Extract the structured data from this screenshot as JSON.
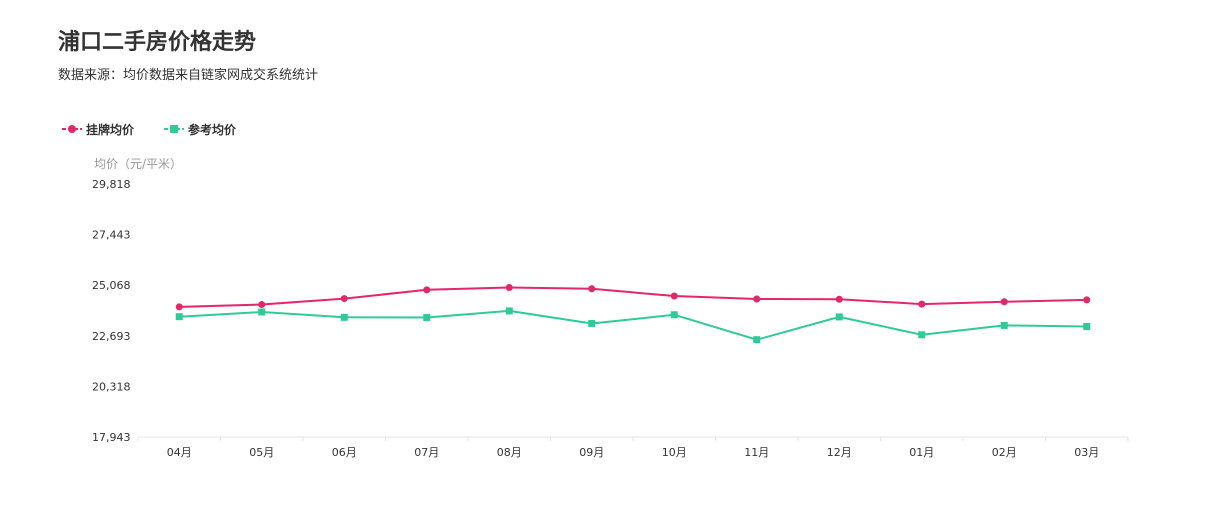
{
  "header": {
    "title": "浦口二手房价格走势",
    "subtitle": "数据来源：均价数据来自链家网成交系统统计"
  },
  "chart_data": {
    "type": "line",
    "title": "浦口二手房价格走势",
    "ylabel": "均价（元/平米）",
    "xlabel": "",
    "categories": [
      "04月",
      "05月",
      "06月",
      "07月",
      "08月",
      "09月",
      "10月",
      "11月",
      "12月",
      "01月",
      "02月",
      "03月"
    ],
    "yticks": [
      "17,943",
      "20,318",
      "22,693",
      "25,068",
      "27,443",
      "29,818"
    ],
    "ylim": [
      17943,
      29818
    ],
    "grid": false,
    "legend_position": "top-left",
    "series": [
      {
        "name": "挂牌均价",
        "color": "#e3276a",
        "marker": "circle",
        "values": [
          24050,
          24160,
          24440,
          24850,
          24960,
          24900,
          24560,
          24420,
          24410,
          24180,
          24290,
          24380
        ]
      },
      {
        "name": "参考均价",
        "color": "#2ecb98",
        "marker": "square",
        "values": [
          23590,
          23810,
          23560,
          23550,
          23860,
          23270,
          23680,
          22510,
          23580,
          22740,
          23180,
          23130
        ]
      }
    ]
  }
}
